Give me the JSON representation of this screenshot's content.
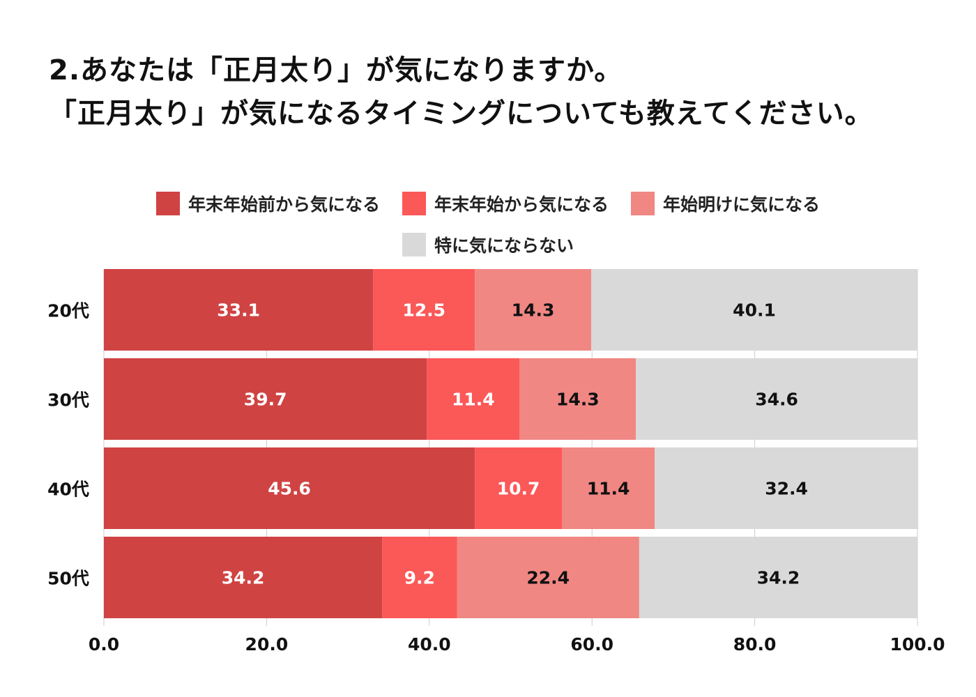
{
  "title": {
    "line1": "2.あなたは「正月太り」が気になりますか。",
    "line2": "「正月太り」が気になるタイミングについても教えてください。"
  },
  "chart_data": {
    "type": "bar",
    "orientation": "horizontal",
    "stacked": true,
    "categories": [
      "20代",
      "30代",
      "40代",
      "50代"
    ],
    "series": [
      {
        "name": "年末年始前から気になる",
        "values": [
          33.1,
          39.7,
          45.6,
          34.2
        ],
        "color": "#d04343",
        "label_color": "#ffffff"
      },
      {
        "name": "年末年始から気になる",
        "values": [
          12.5,
          11.4,
          10.7,
          9.2
        ],
        "color": "#fb5858",
        "label_color": "#ffffff"
      },
      {
        "name": "年始明けに気になる",
        "values": [
          14.3,
          14.3,
          11.4,
          22.4
        ],
        "color": "#f08783",
        "label_color": "#111111"
      },
      {
        "name": "特に気にならない",
        "values": [
          40.1,
          34.6,
          32.4,
          34.2
        ],
        "color": "#d9d9d9",
        "label_color": "#111111"
      }
    ],
    "xlim": [
      0,
      100
    ],
    "xticks": [
      "0.0",
      "20.0",
      "40.0",
      "60.0",
      "80.0",
      "100.0"
    ],
    "tick_values": [
      0,
      20,
      40,
      60,
      80,
      100
    ],
    "grid": true,
    "legend_position": "top"
  }
}
